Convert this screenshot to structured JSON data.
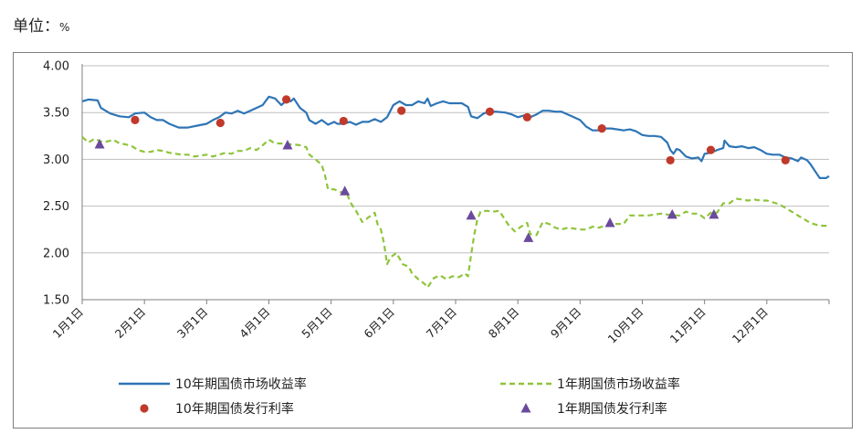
{
  "unit_label": {
    "prefix": "单位：",
    "value": "%"
  },
  "colors": {
    "ten_year_line": "#2e75b6",
    "one_year_line": "#8fc43a",
    "ten_year_issue": "#c0392b",
    "one_year_issue": "#6a4a9c",
    "grid": "#bfbfbf",
    "axis": "#7f7f7f"
  },
  "chart_data": {
    "type": "line",
    "title": "",
    "xlabel": "",
    "ylabel": "",
    "ylim": [
      1.5,
      4.0
    ],
    "yticks": [
      "4.00",
      "3.50",
      "3.00",
      "2.50",
      "2.00",
      "1.50"
    ],
    "ytick_values": [
      4.0,
      3.5,
      3.0,
      2.5,
      2.0,
      1.5
    ],
    "xlim": [
      1,
      13
    ],
    "xticks": [
      "1月1日",
      "2月1日",
      "3月1日",
      "4月1日",
      "5月1日",
      "6月1日",
      "7月1日",
      "8月1日",
      "9月1日",
      "10月1日",
      "11月1日",
      "12月1日"
    ],
    "grid": "horizontal",
    "legend_position": "bottom",
    "series": [
      {
        "name": "10年期国债市场收益率",
        "style": "solid-line",
        "points": [
          [
            1.0,
            3.62
          ],
          [
            1.1,
            3.64
          ],
          [
            1.25,
            3.63
          ],
          [
            1.3,
            3.55
          ],
          [
            1.45,
            3.49
          ],
          [
            1.6,
            3.46
          ],
          [
            1.75,
            3.45
          ],
          [
            1.85,
            3.49
          ],
          [
            2.0,
            3.5
          ],
          [
            2.1,
            3.45
          ],
          [
            2.2,
            3.42
          ],
          [
            2.3,
            3.42
          ],
          [
            2.4,
            3.38
          ],
          [
            2.55,
            3.34
          ],
          [
            2.7,
            3.34
          ],
          [
            2.85,
            3.36
          ],
          [
            3.0,
            3.38
          ],
          [
            3.1,
            3.42
          ],
          [
            3.2,
            3.45
          ],
          [
            3.3,
            3.5
          ],
          [
            3.4,
            3.49
          ],
          [
            3.5,
            3.52
          ],
          [
            3.6,
            3.49
          ],
          [
            3.7,
            3.52
          ],
          [
            3.8,
            3.55
          ],
          [
            3.9,
            3.58
          ],
          [
            4.0,
            3.67
          ],
          [
            4.1,
            3.65
          ],
          [
            4.2,
            3.58
          ],
          [
            4.3,
            3.64
          ],
          [
            4.35,
            3.62
          ],
          [
            4.4,
            3.65
          ],
          [
            4.5,
            3.55
          ],
          [
            4.6,
            3.5
          ],
          [
            4.65,
            3.42
          ],
          [
            4.75,
            3.38
          ],
          [
            4.85,
            3.42
          ],
          [
            4.95,
            3.37
          ],
          [
            5.05,
            3.4
          ],
          [
            5.1,
            3.38
          ],
          [
            5.2,
            3.38
          ],
          [
            5.3,
            3.4
          ],
          [
            5.4,
            3.37
          ],
          [
            5.5,
            3.4
          ],
          [
            5.6,
            3.4
          ],
          [
            5.7,
            3.43
          ],
          [
            5.8,
            3.4
          ],
          [
            5.9,
            3.45
          ],
          [
            6.0,
            3.58
          ],
          [
            6.1,
            3.62
          ],
          [
            6.2,
            3.58
          ],
          [
            6.3,
            3.58
          ],
          [
            6.4,
            3.62
          ],
          [
            6.5,
            3.6
          ],
          [
            6.55,
            3.65
          ],
          [
            6.6,
            3.57
          ],
          [
            6.7,
            3.6
          ],
          [
            6.8,
            3.62
          ],
          [
            6.9,
            3.6
          ],
          [
            7.0,
            3.6
          ],
          [
            7.1,
            3.6
          ],
          [
            7.2,
            3.56
          ],
          [
            7.25,
            3.46
          ],
          [
            7.35,
            3.44
          ],
          [
            7.45,
            3.49
          ],
          [
            7.55,
            3.51
          ],
          [
            7.65,
            3.51
          ],
          [
            7.8,
            3.5
          ],
          [
            7.9,
            3.48
          ],
          [
            8.0,
            3.45
          ],
          [
            8.1,
            3.47
          ],
          [
            8.2,
            3.45
          ],
          [
            8.3,
            3.48
          ],
          [
            8.4,
            3.52
          ],
          [
            8.5,
            3.52
          ],
          [
            8.6,
            3.51
          ],
          [
            8.7,
            3.51
          ],
          [
            8.8,
            3.48
          ],
          [
            8.9,
            3.45
          ],
          [
            9.0,
            3.42
          ],
          [
            9.1,
            3.35
          ],
          [
            9.2,
            3.31
          ],
          [
            9.3,
            3.31
          ],
          [
            9.4,
            3.33
          ],
          [
            9.5,
            3.33
          ],
          [
            9.6,
            3.32
          ],
          [
            9.7,
            3.31
          ],
          [
            9.8,
            3.32
          ],
          [
            9.9,
            3.3
          ],
          [
            10.0,
            3.26
          ],
          [
            10.1,
            3.25
          ],
          [
            10.2,
            3.25
          ],
          [
            10.3,
            3.24
          ],
          [
            10.4,
            3.18
          ],
          [
            10.45,
            3.1
          ],
          [
            10.5,
            3.06
          ],
          [
            10.55,
            3.11
          ],
          [
            10.6,
            3.1
          ],
          [
            10.7,
            3.03
          ],
          [
            10.8,
            3.01
          ],
          [
            10.9,
            3.02
          ],
          [
            10.95,
            2.98
          ],
          [
            11.0,
            3.06
          ],
          [
            11.1,
            3.07
          ],
          [
            11.2,
            3.1
          ],
          [
            11.3,
            3.12
          ],
          [
            11.32,
            3.2
          ],
          [
            11.4,
            3.14
          ],
          [
            11.5,
            3.13
          ],
          [
            11.6,
            3.14
          ],
          [
            11.7,
            3.12
          ],
          [
            11.8,
            3.13
          ],
          [
            11.9,
            3.1
          ],
          [
            12.0,
            3.06
          ],
          [
            12.1,
            3.05
          ],
          [
            12.2,
            3.05
          ],
          [
            12.3,
            3.02
          ],
          [
            12.4,
            3.01
          ],
          [
            12.5,
            2.98
          ],
          [
            12.55,
            3.02
          ],
          [
            12.65,
            2.99
          ],
          [
            12.7,
            2.95
          ],
          [
            12.8,
            2.85
          ],
          [
            12.85,
            2.8
          ],
          [
            12.95,
            2.8
          ],
          [
            13.0,
            2.82
          ]
        ]
      },
      {
        "name": "1年期国债市场收益率",
        "style": "dashed-line",
        "points": [
          [
            1.0,
            3.24
          ],
          [
            1.1,
            3.18
          ],
          [
            1.2,
            3.22
          ],
          [
            1.3,
            3.19
          ],
          [
            1.4,
            3.19
          ],
          [
            1.5,
            3.21
          ],
          [
            1.6,
            3.17
          ],
          [
            1.7,
            3.16
          ],
          [
            1.8,
            3.14
          ],
          [
            1.9,
            3.1
          ],
          [
            2.0,
            3.08
          ],
          [
            2.1,
            3.08
          ],
          [
            2.2,
            3.1
          ],
          [
            2.3,
            3.09
          ],
          [
            2.4,
            3.07
          ],
          [
            2.5,
            3.06
          ],
          [
            2.6,
            3.05
          ],
          [
            2.7,
            3.05
          ],
          [
            2.8,
            3.03
          ],
          [
            2.9,
            3.04
          ],
          [
            3.0,
            3.05
          ],
          [
            3.1,
            3.03
          ],
          [
            3.2,
            3.05
          ],
          [
            3.3,
            3.07
          ],
          [
            3.4,
            3.06
          ],
          [
            3.5,
            3.09
          ],
          [
            3.6,
            3.09
          ],
          [
            3.7,
            3.12
          ],
          [
            3.8,
            3.1
          ],
          [
            3.9,
            3.15
          ],
          [
            4.0,
            3.21
          ],
          [
            4.1,
            3.17
          ],
          [
            4.2,
            3.17
          ],
          [
            4.3,
            3.16
          ],
          [
            4.4,
            3.16
          ],
          [
            4.5,
            3.15
          ],
          [
            4.6,
            3.13
          ],
          [
            4.65,
            3.05
          ],
          [
            4.75,
            3.0
          ],
          [
            4.85,
            2.94
          ],
          [
            4.9,
            2.83
          ],
          [
            4.95,
            2.68
          ],
          [
            5.05,
            2.68
          ],
          [
            5.15,
            2.65
          ],
          [
            5.25,
            2.65
          ],
          [
            5.3,
            2.55
          ],
          [
            5.4,
            2.45
          ],
          [
            5.5,
            2.33
          ],
          [
            5.6,
            2.38
          ],
          [
            5.7,
            2.43
          ],
          [
            5.75,
            2.3
          ],
          [
            5.8,
            2.25
          ],
          [
            5.85,
            2.1
          ],
          [
            5.9,
            1.88
          ],
          [
            5.95,
            1.95
          ],
          [
            6.05,
            2.0
          ],
          [
            6.15,
            1.88
          ],
          [
            6.25,
            1.85
          ],
          [
            6.3,
            1.78
          ],
          [
            6.4,
            1.72
          ],
          [
            6.5,
            1.67
          ],
          [
            6.55,
            1.63
          ],
          [
            6.65,
            1.73
          ],
          [
            6.75,
            1.76
          ],
          [
            6.85,
            1.72
          ],
          [
            6.95,
            1.75
          ],
          [
            7.05,
            1.74
          ],
          [
            7.15,
            1.78
          ],
          [
            7.2,
            1.75
          ],
          [
            7.25,
            1.98
          ],
          [
            7.3,
            2.2
          ],
          [
            7.35,
            2.36
          ],
          [
            7.4,
            2.44
          ],
          [
            7.5,
            2.45
          ],
          [
            7.6,
            2.44
          ],
          [
            7.7,
            2.45
          ],
          [
            7.75,
            2.4
          ],
          [
            7.85,
            2.3
          ],
          [
            7.95,
            2.23
          ],
          [
            8.05,
            2.28
          ],
          [
            8.15,
            2.32
          ],
          [
            8.2,
            2.2
          ],
          [
            8.3,
            2.19
          ],
          [
            8.4,
            2.33
          ],
          [
            8.5,
            2.31
          ],
          [
            8.6,
            2.27
          ],
          [
            8.7,
            2.25
          ],
          [
            8.8,
            2.27
          ],
          [
            8.9,
            2.26
          ],
          [
            9.0,
            2.25
          ],
          [
            9.1,
            2.25
          ],
          [
            9.2,
            2.28
          ],
          [
            9.3,
            2.27
          ],
          [
            9.4,
            2.29
          ],
          [
            9.5,
            2.31
          ],
          [
            9.6,
            2.31
          ],
          [
            9.7,
            2.31
          ],
          [
            9.8,
            2.4
          ],
          [
            9.9,
            2.4
          ],
          [
            10.0,
            2.4
          ],
          [
            10.1,
            2.4
          ],
          [
            10.2,
            2.41
          ],
          [
            10.3,
            2.42
          ],
          [
            10.4,
            2.41
          ],
          [
            10.5,
            2.4
          ],
          [
            10.6,
            2.4
          ],
          [
            10.7,
            2.44
          ],
          [
            10.8,
            2.42
          ],
          [
            10.9,
            2.42
          ],
          [
            11.0,
            2.37
          ],
          [
            11.1,
            2.43
          ],
          [
            11.2,
            2.43
          ],
          [
            11.3,
            2.53
          ],
          [
            11.4,
            2.53
          ],
          [
            11.5,
            2.58
          ],
          [
            11.6,
            2.57
          ],
          [
            11.7,
            2.56
          ],
          [
            11.8,
            2.57
          ],
          [
            11.9,
            2.56
          ],
          [
            12.0,
            2.56
          ],
          [
            12.1,
            2.54
          ],
          [
            12.2,
            2.52
          ],
          [
            12.3,
            2.48
          ],
          [
            12.4,
            2.44
          ],
          [
            12.5,
            2.4
          ],
          [
            12.6,
            2.36
          ],
          [
            12.7,
            2.32
          ],
          [
            12.8,
            2.3
          ],
          [
            12.9,
            2.29
          ],
          [
            13.0,
            2.29
          ]
        ]
      },
      {
        "name": "10年期国债发行利率",
        "style": "circle-marker",
        "points": [
          [
            1.85,
            3.42
          ],
          [
            3.22,
            3.39
          ],
          [
            4.28,
            3.64
          ],
          [
            5.2,
            3.41
          ],
          [
            6.13,
            3.52
          ],
          [
            7.55,
            3.51
          ],
          [
            8.15,
            3.45
          ],
          [
            9.35,
            3.33
          ],
          [
            10.45,
            2.99
          ],
          [
            11.1,
            3.1
          ],
          [
            12.3,
            2.99
          ]
        ]
      },
      {
        "name": "1年期国债发行利率",
        "style": "triangle-marker",
        "points": [
          [
            1.28,
            3.16
          ],
          [
            4.3,
            3.15
          ],
          [
            5.22,
            2.66
          ],
          [
            7.25,
            2.4
          ],
          [
            8.17,
            2.16
          ],
          [
            9.48,
            2.32
          ],
          [
            10.48,
            2.41
          ],
          [
            11.15,
            2.41
          ]
        ]
      }
    ]
  }
}
